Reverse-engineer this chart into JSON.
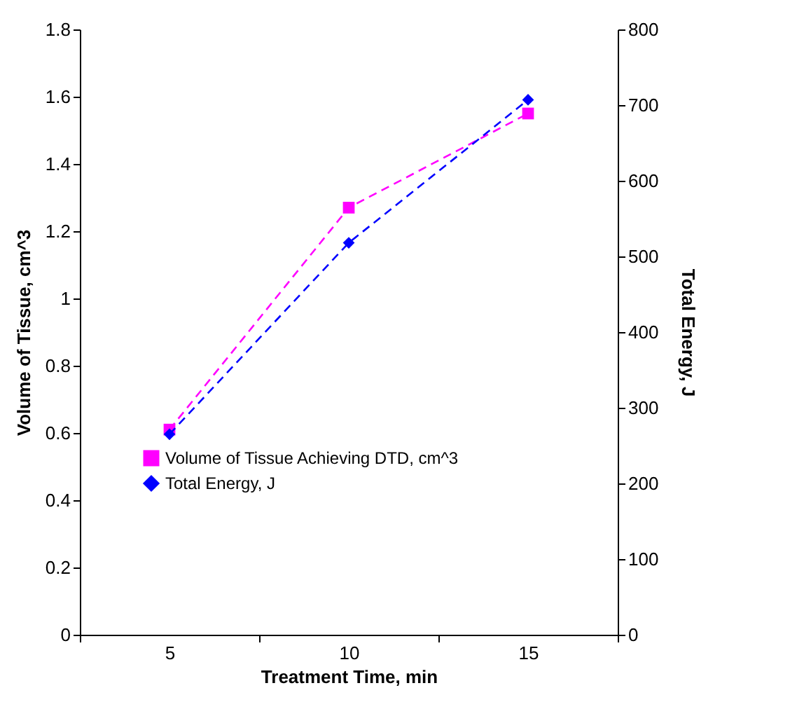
{
  "chart_data": {
    "type": "line",
    "xlabel": "Treatment Time, min",
    "ylabel": "Volume of Tissue, cm^3",
    "y2label": "Total Energy, J",
    "categories": [
      "5",
      "10",
      "15"
    ],
    "series": [
      {
        "name": "Volume of Tissue Achieving DTD, cm^3",
        "color": "#ff00ff",
        "marker": "square",
        "values": [
          0.61,
          1.27,
          1.55
        ]
      },
      {
        "name": "Total Energy, J",
        "color": "#0000ff",
        "marker": "diamond",
        "axis": "y2",
        "values": [
          265,
          518,
          707
        ]
      }
    ],
    "ylim": [
      0,
      1.8
    ],
    "yticks": [
      0,
      0.2,
      0.4,
      0.6,
      0.8,
      1,
      1.2,
      1.4,
      1.6,
      1.8
    ],
    "y2lim": [
      0,
      800
    ],
    "y2ticks": [
      0,
      100,
      200,
      300,
      400,
      500,
      600,
      700,
      800
    ],
    "line_style": "dashed",
    "grid": false,
    "legend": "bottom left"
  }
}
